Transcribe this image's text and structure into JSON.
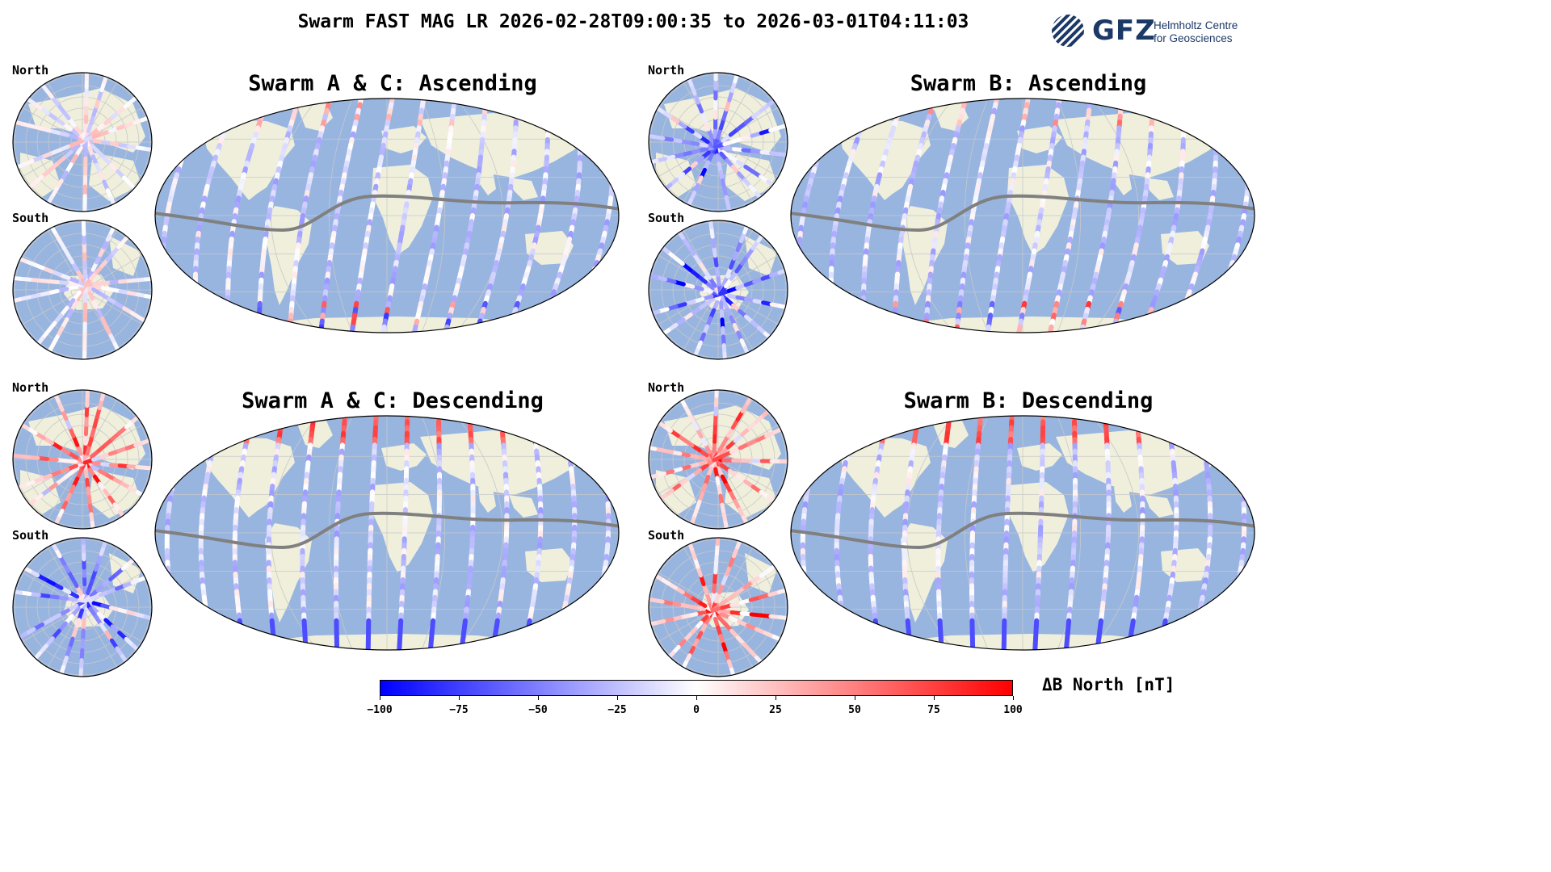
{
  "title": "Swarm FAST MAG LR 2026-02-28T09:00:35 to 2026-03-01T04:11:03",
  "logo": {
    "name": "GFZ",
    "org_line1": "Helmholtz Centre",
    "org_line2": "for Geosciences",
    "color": "#1c3866"
  },
  "polar_labels": {
    "north": "North",
    "south": "South"
  },
  "panels": [
    {
      "title": "Swarm A & C: Ascending"
    },
    {
      "title": "Swarm B: Ascending"
    },
    {
      "title": "Swarm A & C: Descending"
    },
    {
      "title": "Swarm B: Descending"
    }
  ],
  "colors": {
    "ocean": "#98b5e0",
    "land": "#efefdc",
    "equator": "#808080",
    "grid": "#c8c8c8"
  },
  "colorbar": {
    "label": "ΔB North [nT]",
    "min": -100,
    "max": 100,
    "colors": [
      "#0000ff",
      "#ffffff",
      "#ff0000"
    ],
    "ticks": [
      "−100",
      "−75",
      "−50",
      "−25",
      "0",
      "25",
      "50",
      "75",
      "100"
    ]
  }
}
